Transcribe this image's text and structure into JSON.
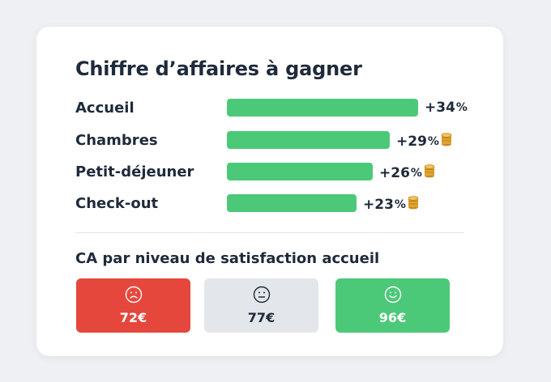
{
  "chart_data": {
    "type": "bar",
    "title": "Chiffre d’affaires à gagner",
    "categories": [
      "Accueil",
      "Chambres",
      "Petit-déjeuner",
      "Check-out"
    ],
    "values": [
      34,
      29,
      26,
      23
    ],
    "value_suffix": "%",
    "value_prefix": "+",
    "xlim": [
      0,
      34
    ],
    "xlabel": "",
    "ylabel": "",
    "bar_color": "#4cc978"
  },
  "satisfaction": {
    "title": "CA par niveau de satisfaction accueil",
    "tiles": [
      {
        "label": "72€",
        "face": "sad",
        "bg": "#e5473c",
        "fg": "#ffffff"
      },
      {
        "label": "77€",
        "face": "neutral",
        "bg": "#e3e6ea",
        "fg": "#1f2a3a"
      },
      {
        "label": "96€",
        "face": "happy",
        "bg": "#4cc978",
        "fg": "#ffffff"
      }
    ]
  },
  "icons": {
    "coin": "coin-stack-icon",
    "sad": "sad-face-icon",
    "neutral": "neutral-face-icon",
    "happy": "happy-face-icon"
  }
}
